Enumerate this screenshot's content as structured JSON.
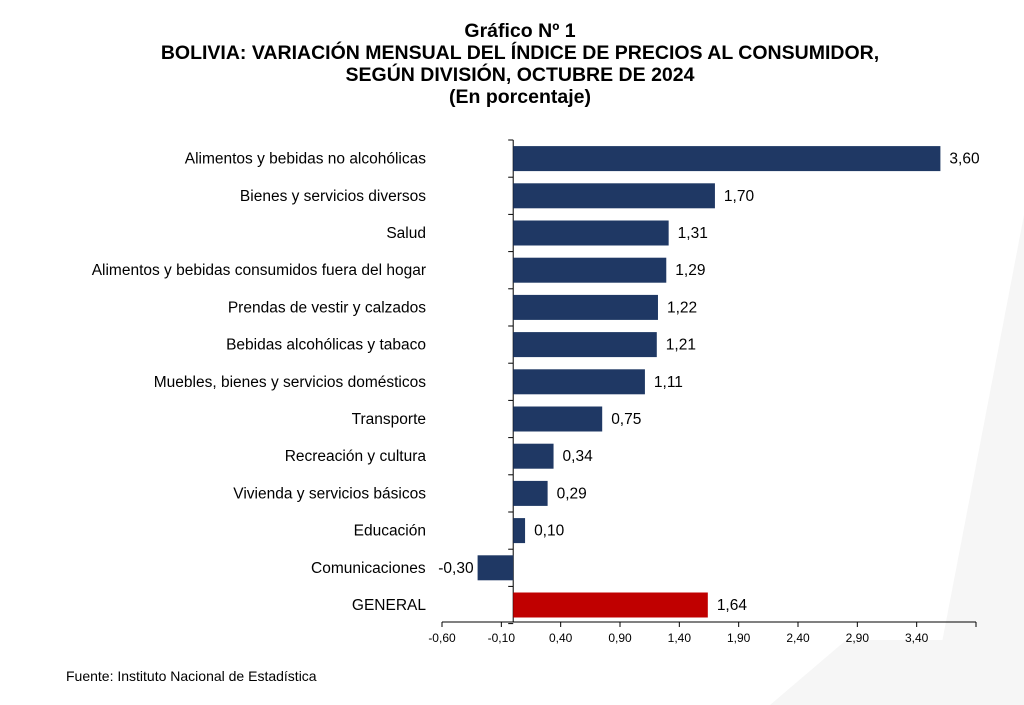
{
  "titles": {
    "line1": "Gráfico Nº 1",
    "line2": "BOLIVIA: VARIACIÓN MENSUAL DEL ÍNDICE DE PRECIOS AL CONSUMIDOR,",
    "line3": "SEGÚN DIVISIÓN, OCTUBRE DE 2024",
    "line4": "(En porcentaje)"
  },
  "source": "Fuente: Instituto Nacional de Estadística",
  "chart_data": {
    "type": "bar",
    "orientation": "horizontal",
    "categories": [
      "Alimentos y bebidas no alcohólicas",
      "Bienes y servicios diversos",
      "Salud",
      "Alimentos y bebidas consumidos fuera del hogar",
      "Prendas de vestir y calzados",
      "Bebidas alcohólicas y tabaco",
      "Muebles, bienes y servicios domésticos",
      "Transporte",
      "Recreación y cultura",
      "Vivienda y servicios básicos",
      "Educación",
      "Comunicaciones",
      "GENERAL"
    ],
    "values": [
      3.6,
      1.7,
      1.31,
      1.29,
      1.22,
      1.21,
      1.11,
      0.75,
      0.34,
      0.29,
      0.1,
      -0.3,
      1.64
    ],
    "value_labels": [
      "3,60",
      "1,70",
      "1,31",
      "1,29",
      "1,22",
      "1,21",
      "1,11",
      "0,75",
      "0,34",
      "0,29",
      "0,10",
      "-0,30",
      "1,64"
    ],
    "xlim": [
      -0.6,
      3.9
    ],
    "x_ticks": [
      -0.6,
      -0.1,
      0.4,
      0.9,
      1.4,
      1.9,
      2.4,
      2.9,
      3.4
    ],
    "x_tick_labels": [
      "-0,60",
      "-0,10",
      "0,40",
      "0,90",
      "1,40",
      "1,90",
      "2,40",
      "2,90",
      "3,40"
    ],
    "colors": {
      "default": "#1f3864",
      "highlight": "#c00000"
    },
    "highlight_category": "GENERAL",
    "grid": false,
    "legend": "none"
  }
}
